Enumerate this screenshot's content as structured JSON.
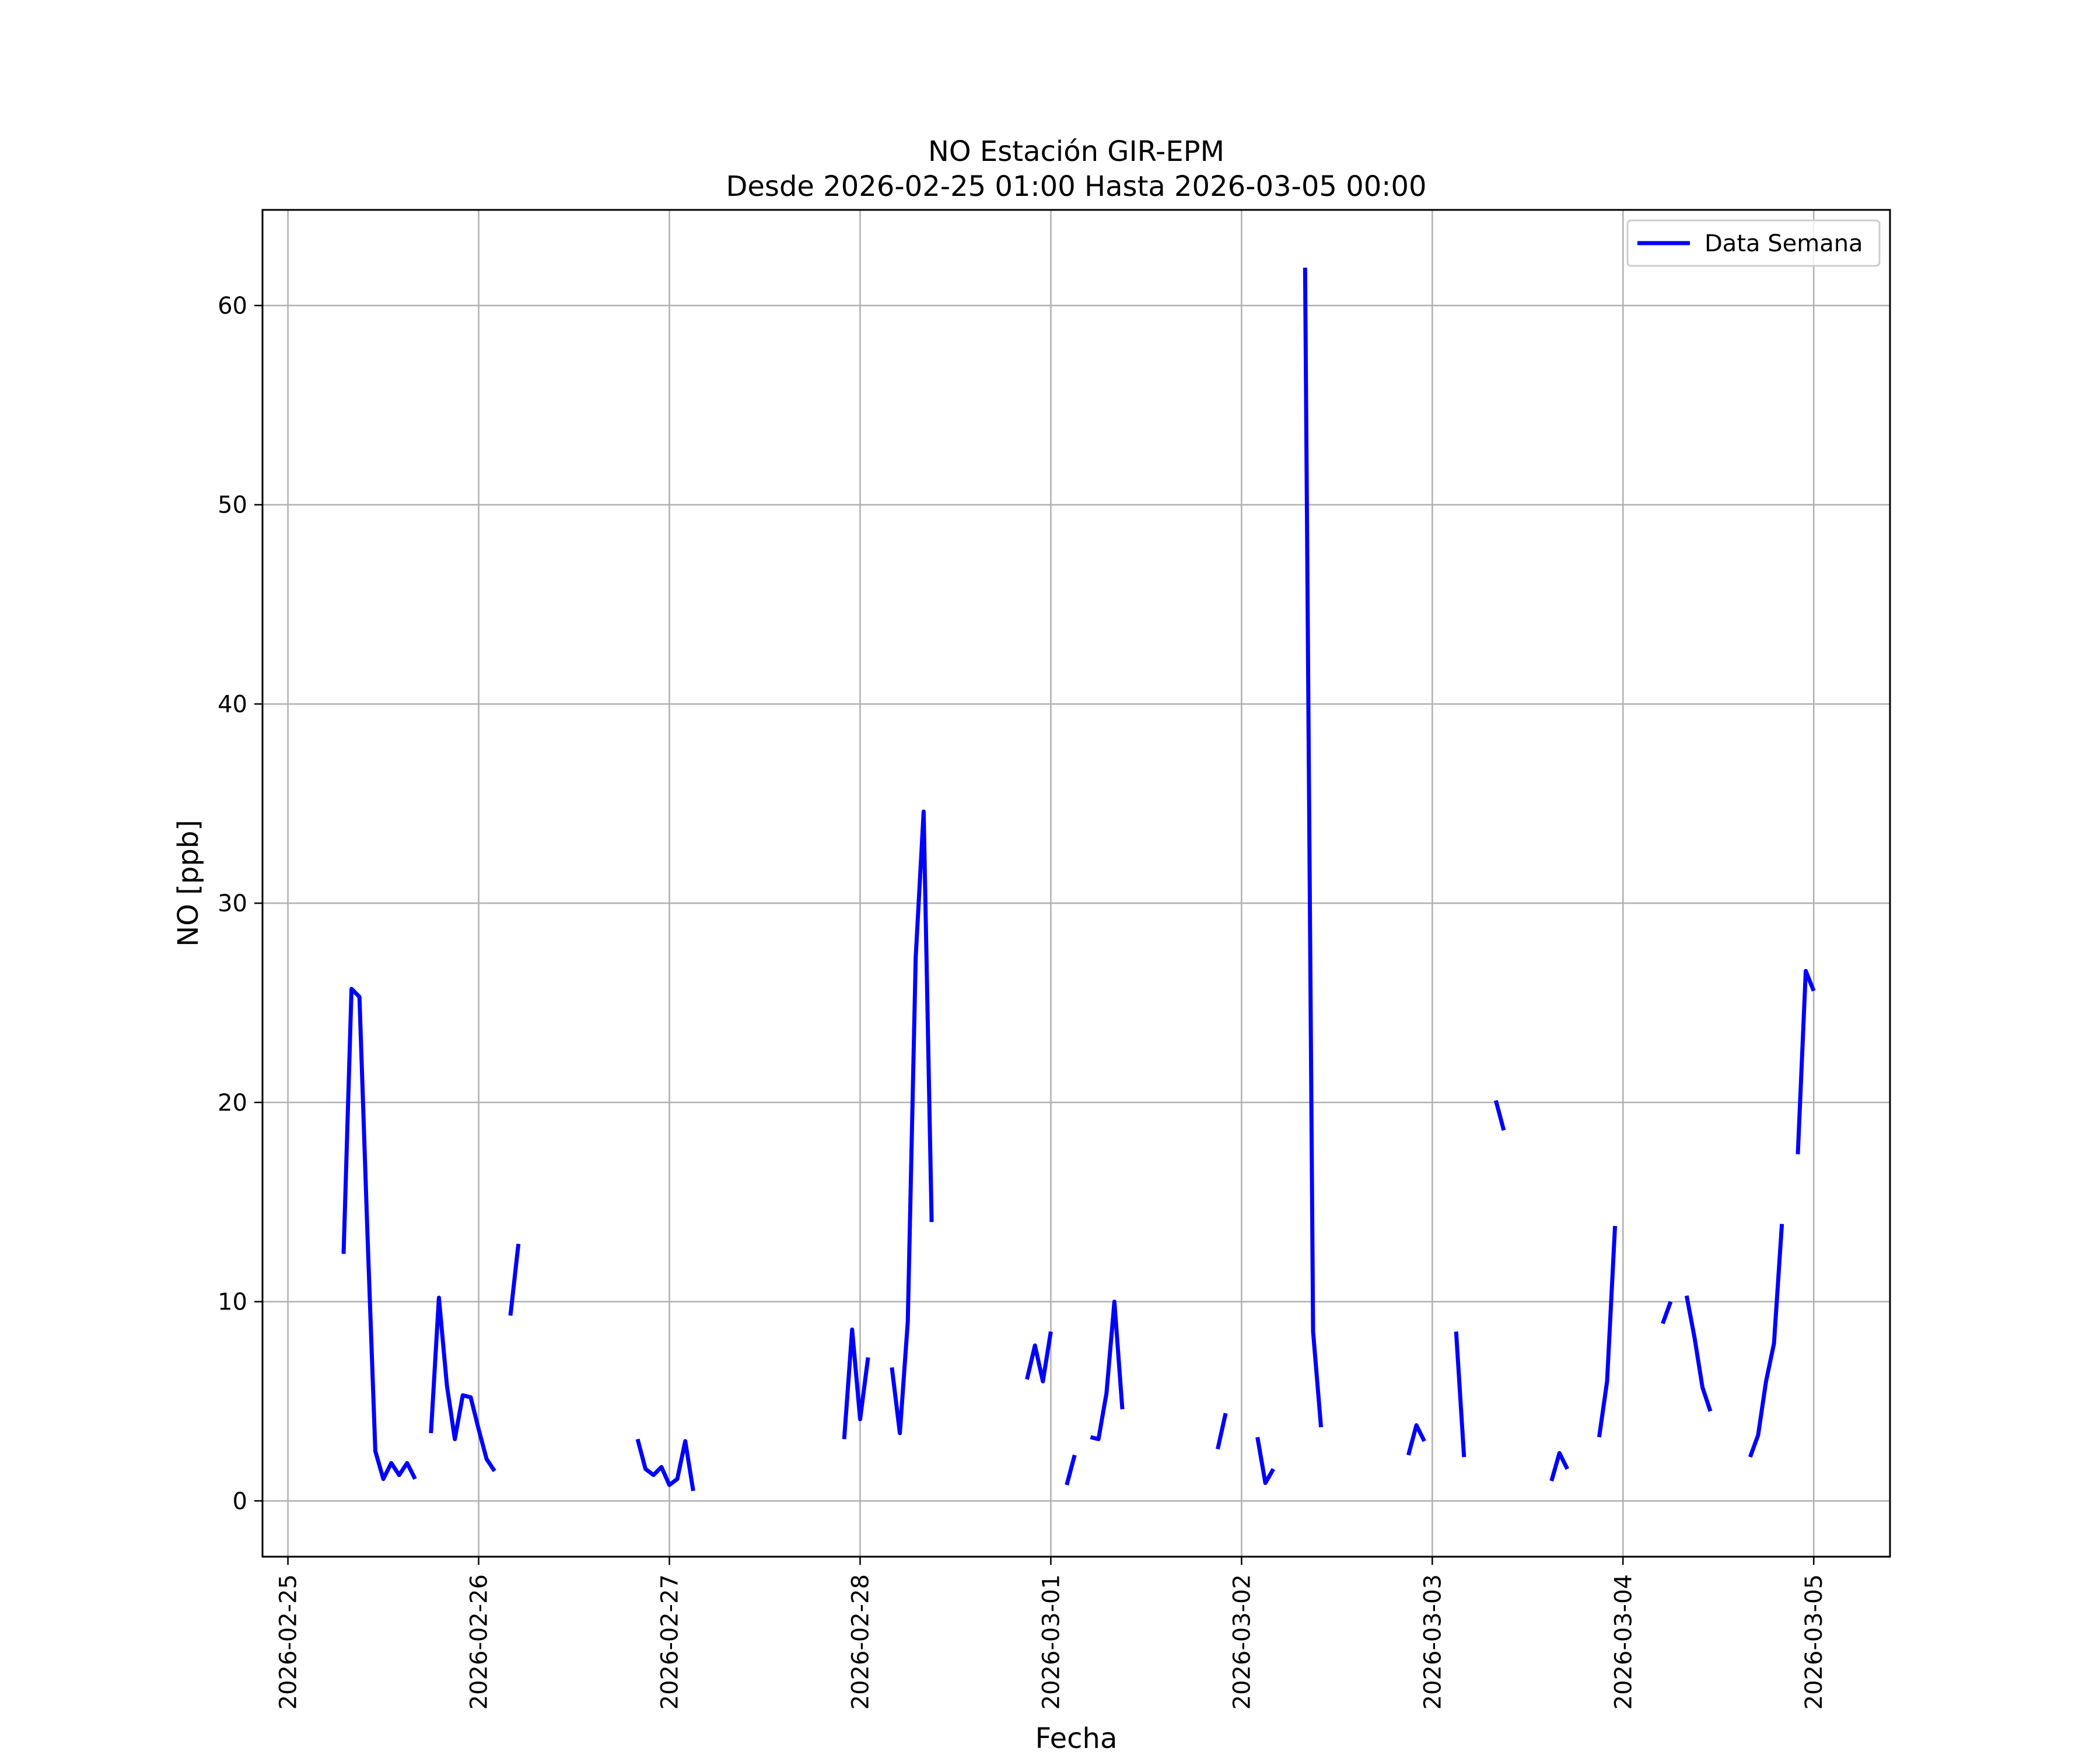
{
  "chart_data": {
    "type": "line",
    "title": "NO Estación GIR-EPM",
    "subtitle": "Desde 2026-02-25 01:00 Hasta 2026-03-05 00:00",
    "xlabel": "Fecha",
    "ylabel": "NO [ppb]",
    "xlim": [
      "2026-02-24 20:48",
      "2026-03-05 09:36"
    ],
    "ylim": [
      -2.8,
      64.8
    ],
    "x_ticks": [
      "2026-02-25",
      "2026-02-26",
      "2026-02-27",
      "2026-02-28",
      "2026-03-01",
      "2026-03-02",
      "2026-03-03",
      "2026-03-04",
      "2026-03-05"
    ],
    "y_ticks": [
      0,
      10,
      20,
      30,
      40,
      50,
      60
    ],
    "grid": true,
    "legend_position": "top-right",
    "colors": {
      "series": "#0000ff",
      "grid": "#b0b0b0",
      "axes": "#000000"
    },
    "series": [
      {
        "name": "Data Semana",
        "x": [
          "2026-02-25 07:00",
          "2026-02-25 08:00",
          "2026-02-25 09:00",
          "2026-02-25 10:00",
          "2026-02-25 11:00",
          "2026-02-25 12:00",
          "2026-02-25 13:00",
          "2026-02-25 14:00",
          "2026-02-25 15:00",
          "2026-02-25 16:00",
          null,
          "2026-02-25 18:00",
          "2026-02-25 19:00",
          "2026-02-25 20:00",
          "2026-02-25 21:00",
          "2026-02-25 22:00",
          "2026-02-25 23:00",
          "2026-02-26 00:00",
          "2026-02-26 01:00",
          "2026-02-26 02:00",
          null,
          "2026-02-26 04:00",
          "2026-02-26 05:00",
          null,
          "2026-02-26 20:00",
          "2026-02-26 21:00",
          "2026-02-26 22:00",
          "2026-02-26 23:00",
          "2026-02-27 00:00",
          "2026-02-27 01:00",
          "2026-02-27 02:00",
          "2026-02-27 03:00",
          null,
          "2026-02-27 22:00",
          "2026-02-27 23:00",
          "2026-02-28 00:00",
          "2026-02-28 01:00",
          null,
          "2026-02-28 04:00",
          "2026-02-28 05:00",
          "2026-02-28 06:00",
          "2026-02-28 07:00",
          "2026-02-28 08:00",
          "2026-02-28 09:00",
          null,
          "2026-02-28 21:00",
          "2026-02-28 22:00",
          "2026-02-28 23:00",
          "2026-03-01 00:00",
          null,
          "2026-03-01 02:00",
          "2026-03-01 03:00",
          null,
          "2026-03-01 05:00",
          "2026-03-01 06:00",
          "2026-03-01 07:00",
          "2026-03-01 08:00",
          "2026-03-01 09:00",
          null,
          "2026-03-01 21:00",
          "2026-03-01 22:00",
          null,
          "2026-03-02 02:00",
          "2026-03-02 03:00",
          "2026-03-02 04:00",
          null,
          "2026-03-02 08:00",
          "2026-03-02 09:00",
          "2026-03-02 10:00",
          null,
          "2026-03-02 21:00",
          "2026-03-02 22:00",
          "2026-03-02 23:00",
          null,
          "2026-03-03 03:00",
          "2026-03-03 04:00",
          null,
          "2026-03-03 08:00",
          "2026-03-03 09:00",
          null,
          "2026-03-03 15:00",
          "2026-03-03 16:00",
          "2026-03-03 17:00",
          null,
          "2026-03-03 21:00",
          "2026-03-03 22:00",
          "2026-03-03 23:00",
          null,
          "2026-03-04 05:00",
          "2026-03-04 06:00",
          null,
          "2026-03-04 08:00",
          "2026-03-04 09:00",
          "2026-03-04 10:00",
          "2026-03-04 11:00",
          null,
          "2026-03-04 16:00",
          "2026-03-04 17:00",
          "2026-03-04 18:00",
          "2026-03-04 19:00",
          "2026-03-04 20:00",
          null,
          "2026-03-04 22:00",
          "2026-03-04 23:00",
          "2026-03-05 00:00"
        ],
        "y": [
          12.4,
          25.7,
          25.3,
          13.5,
          2.5,
          1.1,
          1.9,
          1.3,
          1.9,
          1.1,
          null,
          3.4,
          10.2,
          5.8,
          3.1,
          5.3,
          5.2,
          3.6,
          2.1,
          1.5,
          null,
          9.3,
          12.9,
          null,
          3.1,
          1.6,
          1.3,
          1.7,
          0.8,
          1.1,
          3.0,
          0.5,
          null,
          3.1,
          8.6,
          4.1,
          7.2,
          null,
          6.7,
          3.4,
          9.0,
          27.3,
          34.6,
          14.0,
          null,
          6.1,
          7.8,
          6.0,
          8.5,
          null,
          0.8,
          2.3,
          null,
          3.2,
          3.1,
          5.4,
          10.0,
          4.6,
          null,
          2.6,
          4.4,
          null,
          3.2,
          0.9,
          1.6,
          null,
          61.9,
          8.5,
          3.7,
          null,
          2.3,
          3.8,
          3.0,
          null,
          8.5,
          2.2,
          null,
          20.1,
          18.6,
          null,
          1.0,
          2.4,
          1.6,
          null,
          3.2,
          6.0,
          13.8,
          null,
          8.9,
          10.0,
          null,
          10.3,
          8.2,
          5.7,
          4.5,
          null,
          2.2,
          3.3,
          6.0,
          7.9,
          13.9,
          null,
          17.4,
          26.6,
          25.6
        ]
      }
    ]
  }
}
